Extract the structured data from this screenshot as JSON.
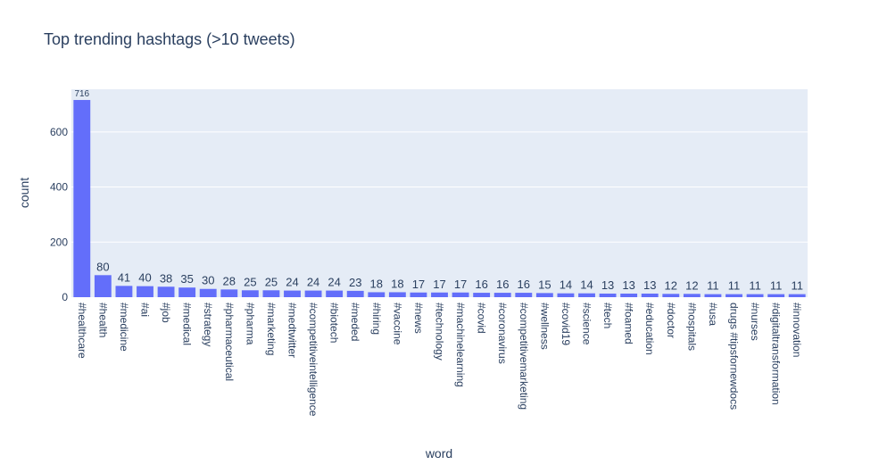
{
  "chart_data": {
    "type": "bar",
    "title": "Top trending hashtags (>10 tweets)",
    "xlabel": "word",
    "ylabel": "count",
    "ylim": [
      0,
      755
    ],
    "yticks": [
      0,
      200,
      400,
      600
    ],
    "grid": true,
    "bar_color": "#636efa",
    "plot_bg": "#e5ecf6",
    "categories": [
      "#healthcare",
      "#health",
      "#medicine",
      "#ai",
      "#job",
      "#medical",
      "#strategy",
      "#pharmaceutical",
      "#pharma",
      "#marketing",
      "#medtwitter",
      "#competitiveintelligence",
      "#biotech",
      "#meded",
      "#hiring",
      "#vaccine",
      "#news",
      "#technology",
      "#machinelearning",
      "#covid",
      "#coronavirus",
      "#competitivemarketing",
      "#wellness",
      "#covid19",
      "#science",
      "#tech",
      "#foamed",
      "#education",
      "#doctor",
      "#hospitals",
      "#usa",
      "drugs  #tipsfornewdocs",
      "#nurses",
      "#digitaltransformation",
      "#innovation"
    ],
    "values": [
      716,
      80,
      41,
      40,
      38,
      35,
      30,
      28,
      25,
      25,
      24,
      24,
      24,
      23,
      18,
      18,
      17,
      17,
      17,
      16,
      16,
      16,
      15,
      14,
      14,
      13,
      13,
      13,
      12,
      12,
      11,
      11,
      11,
      11,
      11
    ]
  }
}
